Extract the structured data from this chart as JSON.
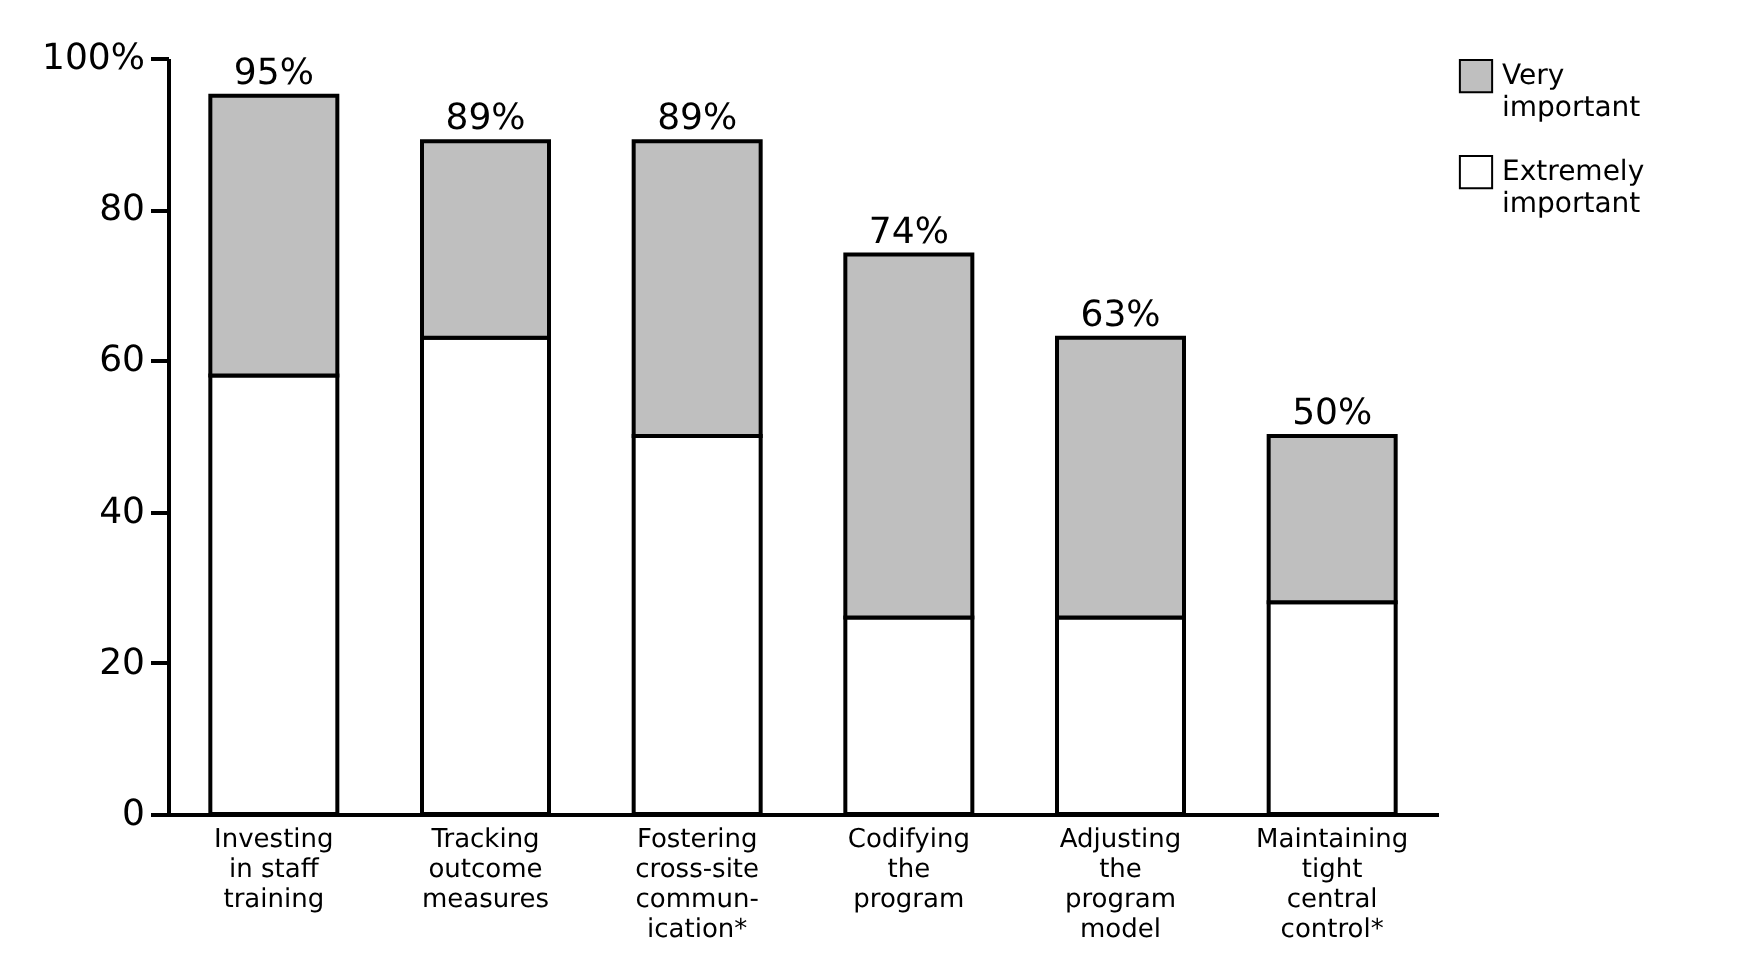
{
  "chart_data": {
    "type": "bar",
    "stacked": true,
    "categories": [
      "Investing\nin staff\ntraining",
      "Tracking\noutcome\nmeasures",
      "Fostering\ncross-site\ncommun-\nication*",
      "Codifying\nthe\nprogram",
      "Adjusting\nthe\nprogram\nmodel",
      "Maintaining\ntight\ncentral\ncontrol*"
    ],
    "series": [
      {
        "name": "Extremely\nimportant",
        "color": "#ffffff",
        "values": [
          58,
          63,
          50,
          26,
          26,
          28
        ]
      },
      {
        "name": "Very\nimportant",
        "color": "#bfbfbf",
        "values": [
          37,
          26,
          39,
          48,
          37,
          22
        ]
      }
    ],
    "totals": [
      "95%",
      "89%",
      "89%",
      "74%",
      "63%",
      "50%"
    ],
    "ylim": [
      0,
      100
    ],
    "yticks": [
      0,
      20,
      40,
      60,
      80,
      {
        "value": 100,
        "label": "100%"
      }
    ],
    "grid": false,
    "legend": "right"
  }
}
